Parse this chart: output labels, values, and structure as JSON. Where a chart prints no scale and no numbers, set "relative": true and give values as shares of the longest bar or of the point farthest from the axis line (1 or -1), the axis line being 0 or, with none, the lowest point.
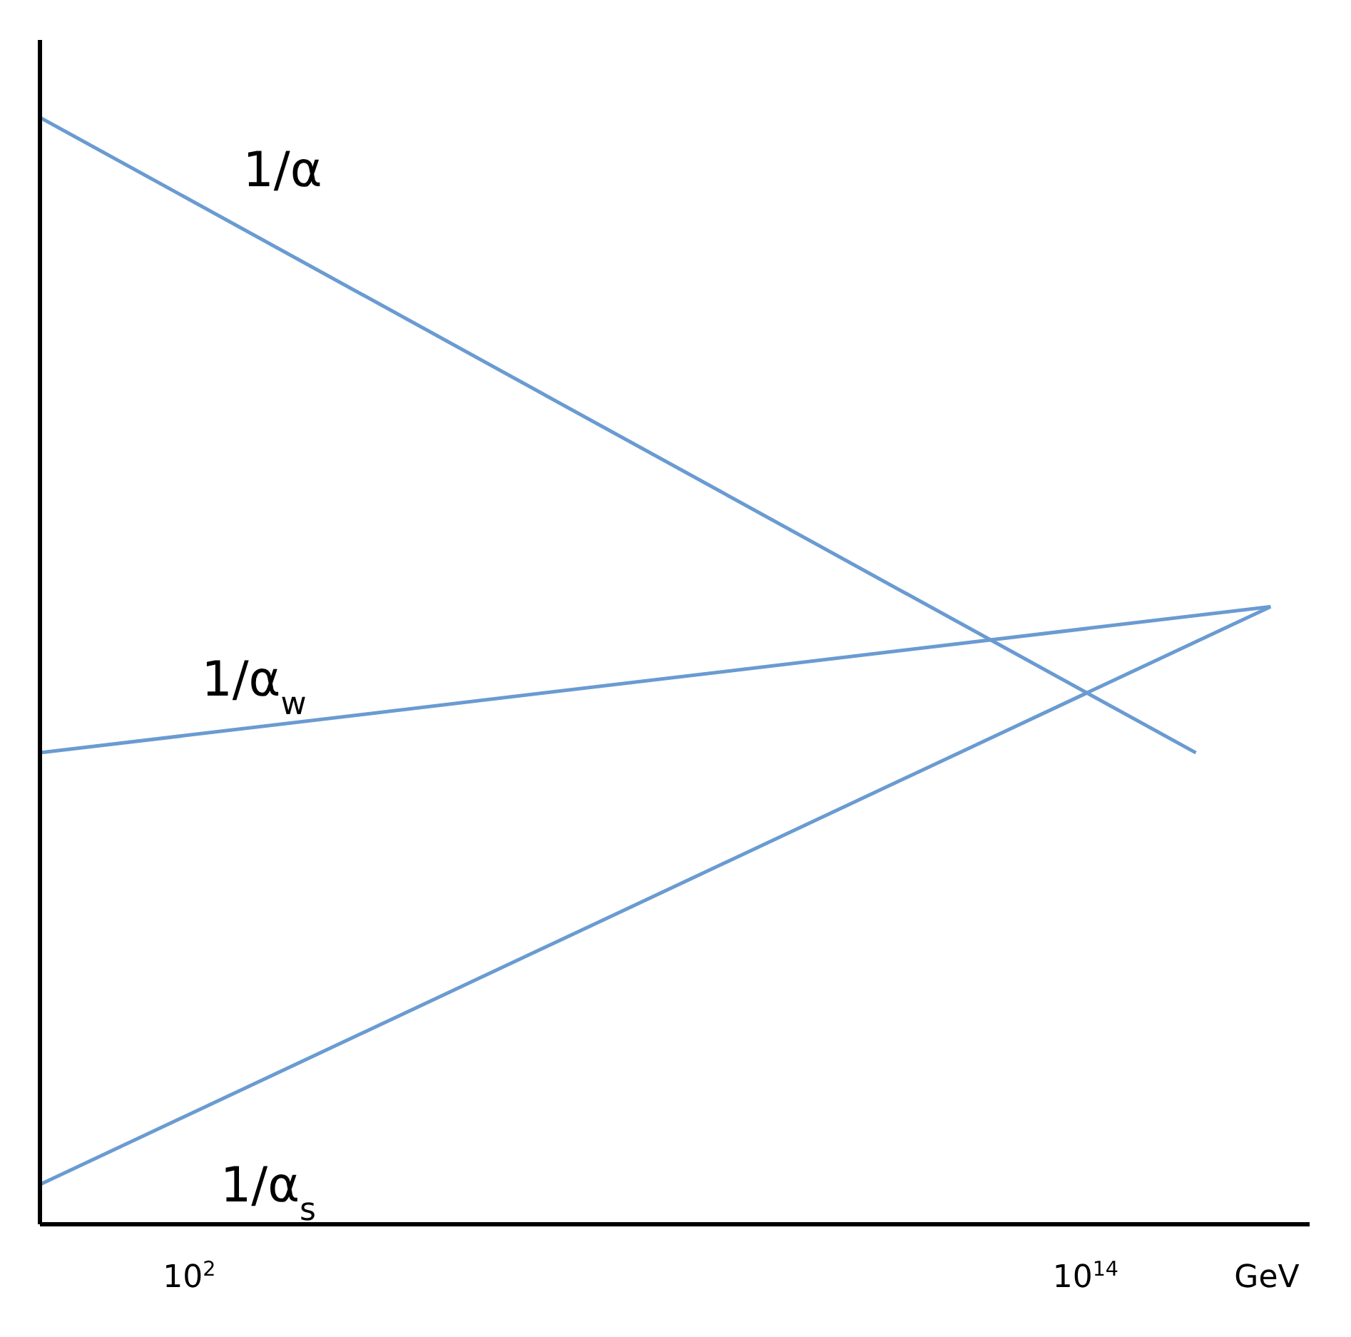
{
  "chart_data": {
    "type": "line",
    "relative": true,
    "log": "x",
    "xlabel": "GeV",
    "xlim": [
      1,
      1e+17
    ],
    "xticks": [
      {
        "value": 100,
        "label": "10$^{2}$"
      },
      {
        "value": 100000000000000.0,
        "label": "10$^{14}$"
      }
    ],
    "series": [
      {
        "name": "1/α",
        "color": "#6a9bd1",
        "x": [
          1,
          3000000000000000.0
        ],
        "values": [
          1,
          0.426
        ]
      },
      {
        "name": "1/α$_{w}$",
        "color": "#6a9bd1",
        "x": [
          1,
          3e+16
        ],
        "values": [
          0.426,
          0.558
        ]
      },
      {
        "name": "1/α$_{s}$",
        "color": "#6a9bd1",
        "x": [
          1,
          3e+16
        ],
        "values": [
          0.036,
          0.558
        ]
      }
    ],
    "grid": false,
    "legend": false,
    "marker": "none",
    "line_style": "solid"
  }
}
